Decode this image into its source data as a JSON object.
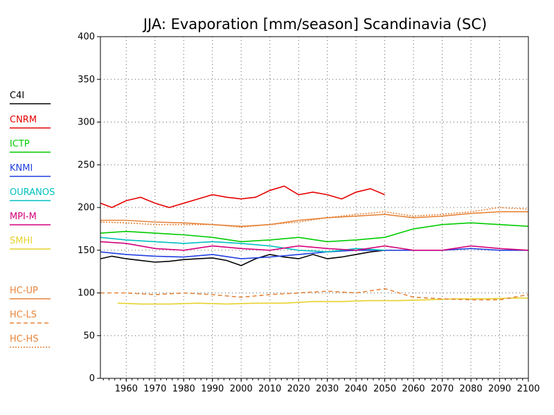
{
  "chart_data": {
    "type": "line",
    "title": "JJA: Evaporation [mm/season] Scandinavia (SC)",
    "xlabel": "",
    "ylabel": "",
    "xlim": [
      1951,
      2100
    ],
    "ylim": [
      0,
      400
    ],
    "xticks": [
      1960,
      1970,
      1980,
      1990,
      2000,
      2010,
      2020,
      2030,
      2040,
      2050,
      2060,
      2070,
      2080,
      2090,
      2100
    ],
    "yticks": [
      0,
      50,
      100,
      150,
      200,
      250,
      300,
      350,
      400
    ],
    "grid": true,
    "legend_position": "left",
    "series": [
      {
        "name": "C4I",
        "color": "#000000",
        "style": "solid",
        "x": [
          1951,
          2050
        ],
        "values": [
          [
            1951,
            140
          ],
          [
            1955,
            143
          ],
          [
            1960,
            140
          ],
          [
            1965,
            138
          ],
          [
            1970,
            136
          ],
          [
            1975,
            137
          ],
          [
            1980,
            139
          ],
          [
            1985,
            140
          ],
          [
            1990,
            141
          ],
          [
            1995,
            138
          ],
          [
            2000,
            132
          ],
          [
            2005,
            140
          ],
          [
            2010,
            145
          ],
          [
            2015,
            142
          ],
          [
            2020,
            140
          ],
          [
            2025,
            145
          ],
          [
            2030,
            140
          ],
          [
            2035,
            142
          ],
          [
            2040,
            145
          ],
          [
            2045,
            148
          ],
          [
            2050,
            150
          ]
        ]
      },
      {
        "name": "CNRM",
        "color": "#e60000",
        "style": "solid",
        "values": [
          [
            1951,
            205
          ],
          [
            1955,
            200
          ],
          [
            1960,
            208
          ],
          [
            1965,
            212
          ],
          [
            1970,
            205
          ],
          [
            1975,
            200
          ],
          [
            1980,
            205
          ],
          [
            1985,
            210
          ],
          [
            1990,
            215
          ],
          [
            1995,
            212
          ],
          [
            2000,
            210
          ],
          [
            2005,
            212
          ],
          [
            2010,
            220
          ],
          [
            2015,
            225
          ],
          [
            2020,
            215
          ],
          [
            2025,
            218
          ],
          [
            2030,
            215
          ],
          [
            2035,
            210
          ],
          [
            2040,
            218
          ],
          [
            2045,
            222
          ],
          [
            2050,
            215
          ]
        ]
      },
      {
        "name": "ICTP",
        "color": "#00cc00",
        "style": "solid",
        "values": [
          [
            1951,
            170
          ],
          [
            1960,
            172
          ],
          [
            1970,
            170
          ],
          [
            1980,
            168
          ],
          [
            1990,
            165
          ],
          [
            2000,
            160
          ],
          [
            2010,
            162
          ],
          [
            2020,
            165
          ],
          [
            2030,
            160
          ],
          [
            2040,
            162
          ],
          [
            2050,
            165
          ],
          [
            2060,
            175
          ],
          [
            2070,
            180
          ],
          [
            2080,
            182
          ],
          [
            2090,
            180
          ],
          [
            2100,
            178
          ]
        ]
      },
      {
        "name": "KNMI",
        "color": "#1f3fe0",
        "style": "solid",
        "values": [
          [
            1951,
            148
          ],
          [
            1960,
            145
          ],
          [
            1970,
            143
          ],
          [
            1980,
            142
          ],
          [
            1990,
            145
          ],
          [
            2000,
            140
          ],
          [
            2010,
            142
          ],
          [
            2020,
            145
          ],
          [
            2030,
            148
          ],
          [
            2040,
            150
          ],
          [
            2050,
            150
          ],
          [
            2060,
            150
          ],
          [
            2070,
            150
          ],
          [
            2080,
            152
          ],
          [
            2090,
            150
          ],
          [
            2100,
            150
          ]
        ]
      },
      {
        "name": "OURANOS",
        "color": "#00c0c0",
        "style": "solid",
        "values": [
          [
            1951,
            165
          ],
          [
            1960,
            162
          ],
          [
            1970,
            160
          ],
          [
            1980,
            158
          ],
          [
            1990,
            160
          ],
          [
            2000,
            158
          ],
          [
            2010,
            155
          ],
          [
            2020,
            150
          ],
          [
            2030,
            148
          ],
          [
            2040,
            152
          ],
          [
            2050,
            150
          ]
        ]
      },
      {
        "name": "MPI-M",
        "color": "#d4007a",
        "style": "solid",
        "values": [
          [
            1951,
            160
          ],
          [
            1960,
            158
          ],
          [
            1970,
            152
          ],
          [
            1980,
            150
          ],
          [
            1990,
            155
          ],
          [
            2000,
            152
          ],
          [
            2010,
            150
          ],
          [
            2020,
            155
          ],
          [
            2030,
            152
          ],
          [
            2040,
            150
          ],
          [
            2050,
            155
          ],
          [
            2060,
            150
          ],
          [
            2070,
            150
          ],
          [
            2080,
            155
          ],
          [
            2090,
            152
          ],
          [
            2100,
            150
          ]
        ]
      },
      {
        "name": "SMHI",
        "color": "#e6d22e",
        "style": "solid",
        "values": [
          [
            1957,
            88
          ],
          [
            1965,
            87
          ],
          [
            1975,
            87
          ],
          [
            1985,
            88
          ],
          [
            1995,
            87
          ],
          [
            2005,
            88
          ],
          [
            2015,
            88
          ],
          [
            2025,
            90
          ],
          [
            2035,
            90
          ],
          [
            2045,
            91
          ],
          [
            2055,
            91
          ],
          [
            2065,
            92
          ],
          [
            2075,
            93
          ],
          [
            2085,
            93
          ],
          [
            2095,
            94
          ],
          [
            2100,
            94
          ]
        ]
      },
      {
        "name": "HC-UP",
        "color": "#e6843a",
        "style": "solid",
        "values": [
          [
            1951,
            185
          ],
          [
            1960,
            185
          ],
          [
            1970,
            183
          ],
          [
            1980,
            182
          ],
          [
            1990,
            180
          ],
          [
            2000,
            178
          ],
          [
            2010,
            180
          ],
          [
            2020,
            185
          ],
          [
            2030,
            188
          ],
          [
            2040,
            190
          ],
          [
            2050,
            192
          ],
          [
            2060,
            188
          ],
          [
            2070,
            190
          ],
          [
            2080,
            193
          ],
          [
            2090,
            195
          ],
          [
            2100,
            195
          ]
        ]
      },
      {
        "name": "HC-LS",
        "color": "#e6843a",
        "style": "dash",
        "values": [
          [
            1951,
            100
          ],
          [
            1960,
            100
          ],
          [
            1970,
            98
          ],
          [
            1980,
            100
          ],
          [
            1990,
            98
          ],
          [
            2000,
            95
          ],
          [
            2010,
            98
          ],
          [
            2020,
            100
          ],
          [
            2030,
            102
          ],
          [
            2040,
            100
          ],
          [
            2050,
            105
          ],
          [
            2060,
            95
          ],
          [
            2070,
            93
          ],
          [
            2080,
            92
          ],
          [
            2090,
            92
          ],
          [
            2100,
            98
          ]
        ]
      },
      {
        "name": "HC-HS",
        "color": "#e6843a",
        "style": "dot",
        "values": [
          [
            1951,
            183
          ],
          [
            1960,
            182
          ],
          [
            1970,
            180
          ],
          [
            1980,
            180
          ],
          [
            1990,
            180
          ],
          [
            2000,
            177
          ],
          [
            2010,
            180
          ],
          [
            2020,
            183
          ],
          [
            2030,
            188
          ],
          [
            2040,
            192
          ],
          [
            2050,
            195
          ],
          [
            2060,
            190
          ],
          [
            2070,
            192
          ],
          [
            2080,
            195
          ],
          [
            2090,
            200
          ],
          [
            2100,
            198
          ]
        ]
      }
    ]
  }
}
